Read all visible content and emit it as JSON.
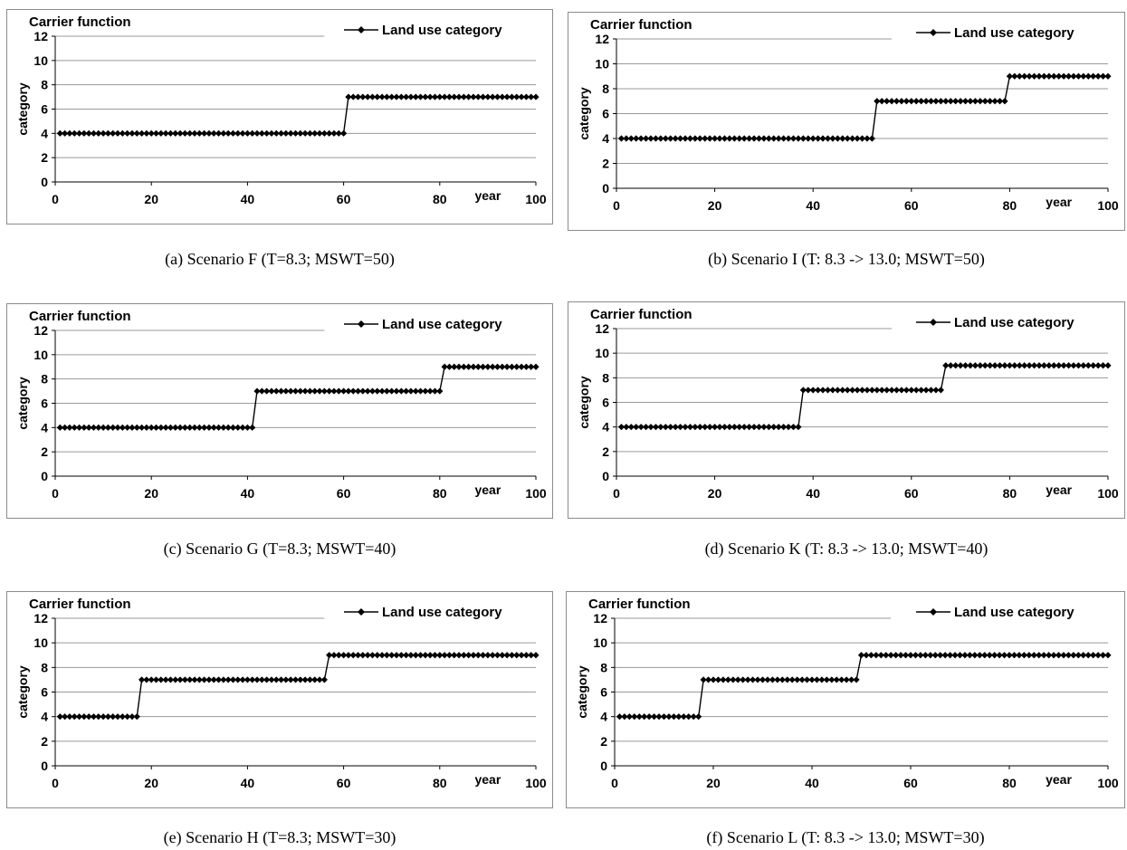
{
  "chart_data": [
    {
      "type": "line",
      "title": "Carrier function",
      "ylabel": "category",
      "xlabel": "year",
      "xlim": [
        0,
        100
      ],
      "ylim": [
        0,
        12
      ],
      "xticks": [
        0,
        20,
        40,
        60,
        80,
        100
      ],
      "yticks": [
        0,
        2,
        4,
        6,
        8,
        10,
        12
      ],
      "legend_position": "top-right",
      "grid": "horizontal",
      "caption": "(a)  Scenario F (T=8.3; MSWT=50)",
      "series": [
        {
          "name": "Land use category",
          "marker": "diamond",
          "color": "#000000",
          "steps": [
            {
              "from": 1,
              "to": 60,
              "value": 4
            },
            {
              "from": 61,
              "to": 100,
              "value": 7
            }
          ]
        }
      ]
    },
    {
      "type": "line",
      "title": "Carrier function",
      "ylabel": "category",
      "xlabel": "year",
      "xlim": [
        0,
        100
      ],
      "ylim": [
        0,
        12
      ],
      "xticks": [
        0,
        20,
        40,
        60,
        80,
        100
      ],
      "yticks": [
        0,
        2,
        4,
        6,
        8,
        10,
        12
      ],
      "legend_position": "top-right",
      "grid": "horizontal",
      "caption": "(b)  Scenario I (T: 8.3 -> 13.0; MSWT=50)",
      "series": [
        {
          "name": "Land use category",
          "marker": "diamond",
          "color": "#000000",
          "steps": [
            {
              "from": 1,
              "to": 52,
              "value": 4
            },
            {
              "from": 53,
              "to": 79,
              "value": 7
            },
            {
              "from": 80,
              "to": 100,
              "value": 9
            }
          ]
        }
      ]
    },
    {
      "type": "line",
      "title": "Carrier function",
      "ylabel": "category",
      "xlabel": "year",
      "xlim": [
        0,
        100
      ],
      "ylim": [
        0,
        12
      ],
      "xticks": [
        0,
        20,
        40,
        60,
        80,
        100
      ],
      "yticks": [
        0,
        2,
        4,
        6,
        8,
        10,
        12
      ],
      "legend_position": "top-right",
      "grid": "horizontal",
      "caption": "(c)  Scenario G (T=8.3; MSWT=40)",
      "series": [
        {
          "name": "Land use category",
          "marker": "diamond",
          "color": "#000000",
          "steps": [
            {
              "from": 1,
              "to": 41,
              "value": 4
            },
            {
              "from": 42,
              "to": 80,
              "value": 7
            },
            {
              "from": 81,
              "to": 100,
              "value": 9
            }
          ]
        }
      ]
    },
    {
      "type": "line",
      "title": "Carrier function",
      "ylabel": "category",
      "xlabel": "year",
      "xlim": [
        0,
        100
      ],
      "ylim": [
        0,
        12
      ],
      "xticks": [
        0,
        20,
        40,
        60,
        80,
        100
      ],
      "yticks": [
        0,
        2,
        4,
        6,
        8,
        10,
        12
      ],
      "legend_position": "top-right",
      "grid": "horizontal",
      "caption": "(d)  Scenario K (T: 8.3 -> 13.0; MSWT=40)",
      "series": [
        {
          "name": "Land use category",
          "marker": "diamond",
          "color": "#000000",
          "steps": [
            {
              "from": 1,
              "to": 37,
              "value": 4
            },
            {
              "from": 38,
              "to": 66,
              "value": 7
            },
            {
              "from": 67,
              "to": 100,
              "value": 9
            }
          ]
        }
      ]
    },
    {
      "type": "line",
      "title": "Carrier function",
      "ylabel": "category",
      "xlabel": "year",
      "xlim": [
        0,
        100
      ],
      "ylim": [
        0,
        12
      ],
      "xticks": [
        0,
        20,
        40,
        60,
        80,
        100
      ],
      "yticks": [
        0,
        2,
        4,
        6,
        8,
        10,
        12
      ],
      "legend_position": "top-right",
      "grid": "horizontal",
      "caption": "(e)  Scenario H (T=8.3; MSWT=30)",
      "series": [
        {
          "name": "Land use category",
          "marker": "diamond",
          "color": "#000000",
          "steps": [
            {
              "from": 1,
              "to": 17,
              "value": 4
            },
            {
              "from": 18,
              "to": 56,
              "value": 7
            },
            {
              "from": 57,
              "to": 100,
              "value": 9
            }
          ]
        }
      ]
    },
    {
      "type": "line",
      "title": "Carrier function",
      "ylabel": "category",
      "xlabel": "year",
      "xlim": [
        0,
        100
      ],
      "ylim": [
        0,
        12
      ],
      "xticks": [
        0,
        20,
        40,
        60,
        80,
        100
      ],
      "yticks": [
        0,
        2,
        4,
        6,
        8,
        10,
        12
      ],
      "legend_position": "top-right",
      "grid": "horizontal",
      "caption": "(f)  Scenario L (T: 8.3 -> 13.0; MSWT=30)",
      "series": [
        {
          "name": "Land use category",
          "marker": "diamond",
          "color": "#000000",
          "steps": [
            {
              "from": 1,
              "to": 17,
              "value": 4
            },
            {
              "from": 18,
              "to": 49,
              "value": 7
            },
            {
              "from": 50,
              "to": 100,
              "value": 9
            }
          ]
        }
      ]
    }
  ]
}
